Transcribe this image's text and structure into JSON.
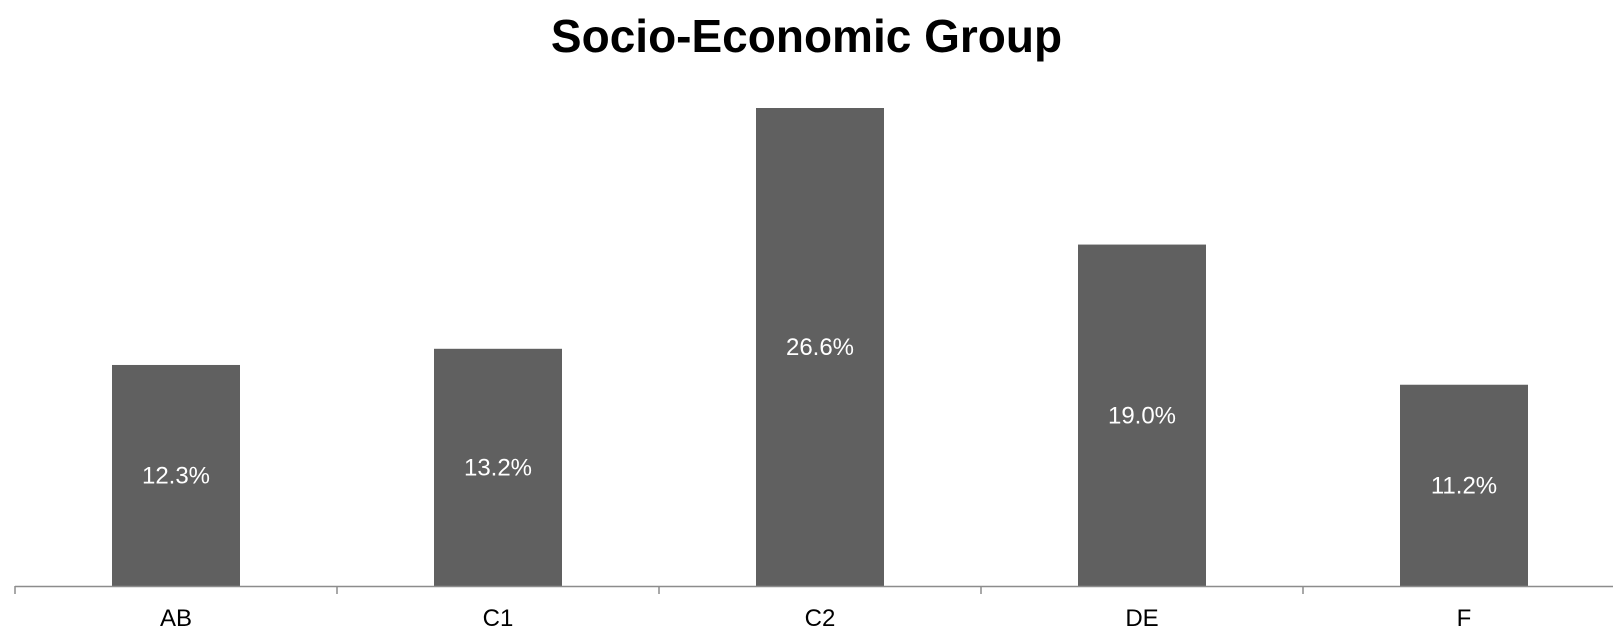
{
  "chart_data": {
    "type": "bar",
    "title": "Socio-Economic Group",
    "categories": [
      "AB",
      "C1",
      "C2",
      "DE",
      "F"
    ],
    "values": [
      12.3,
      13.2,
      26.6,
      19.0,
      11.2
    ],
    "data_labels": [
      "12.3%",
      "13.2%",
      "26.6%",
      "19.0%",
      "11.2%"
    ],
    "ylim": [
      0,
      26.6
    ],
    "grid": false,
    "legend": "none",
    "bar_color": "#606060"
  }
}
